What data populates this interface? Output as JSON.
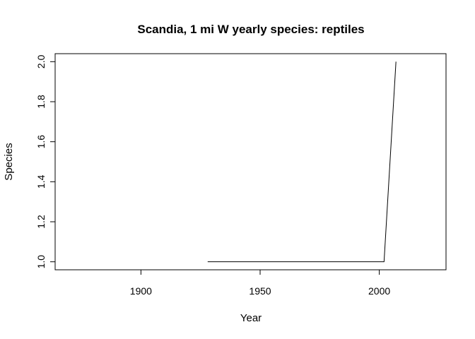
{
  "chart_data": {
    "type": "line",
    "title": "Scandia, 1 mi W yearly species: reptiles",
    "xlabel": "Year",
    "ylabel": "Species",
    "xlim": [
      1864,
      2028
    ],
    "ylim": [
      0.96,
      2.04
    ],
    "xticks": [
      1900,
      1950,
      2000
    ],
    "yticks": [
      1.0,
      1.2,
      1.4,
      1.6,
      1.8,
      2.0
    ],
    "xtick_labels": [
      "1900",
      "1950",
      "2000"
    ],
    "ytick_labels": [
      "1.0",
      "1.2",
      "1.4",
      "1.6",
      "1.8",
      "2.0"
    ],
    "grid": false,
    "series": [
      {
        "x": [
          1928,
          2002,
          2007
        ],
        "y": [
          1,
          1,
          2
        ]
      }
    ]
  }
}
